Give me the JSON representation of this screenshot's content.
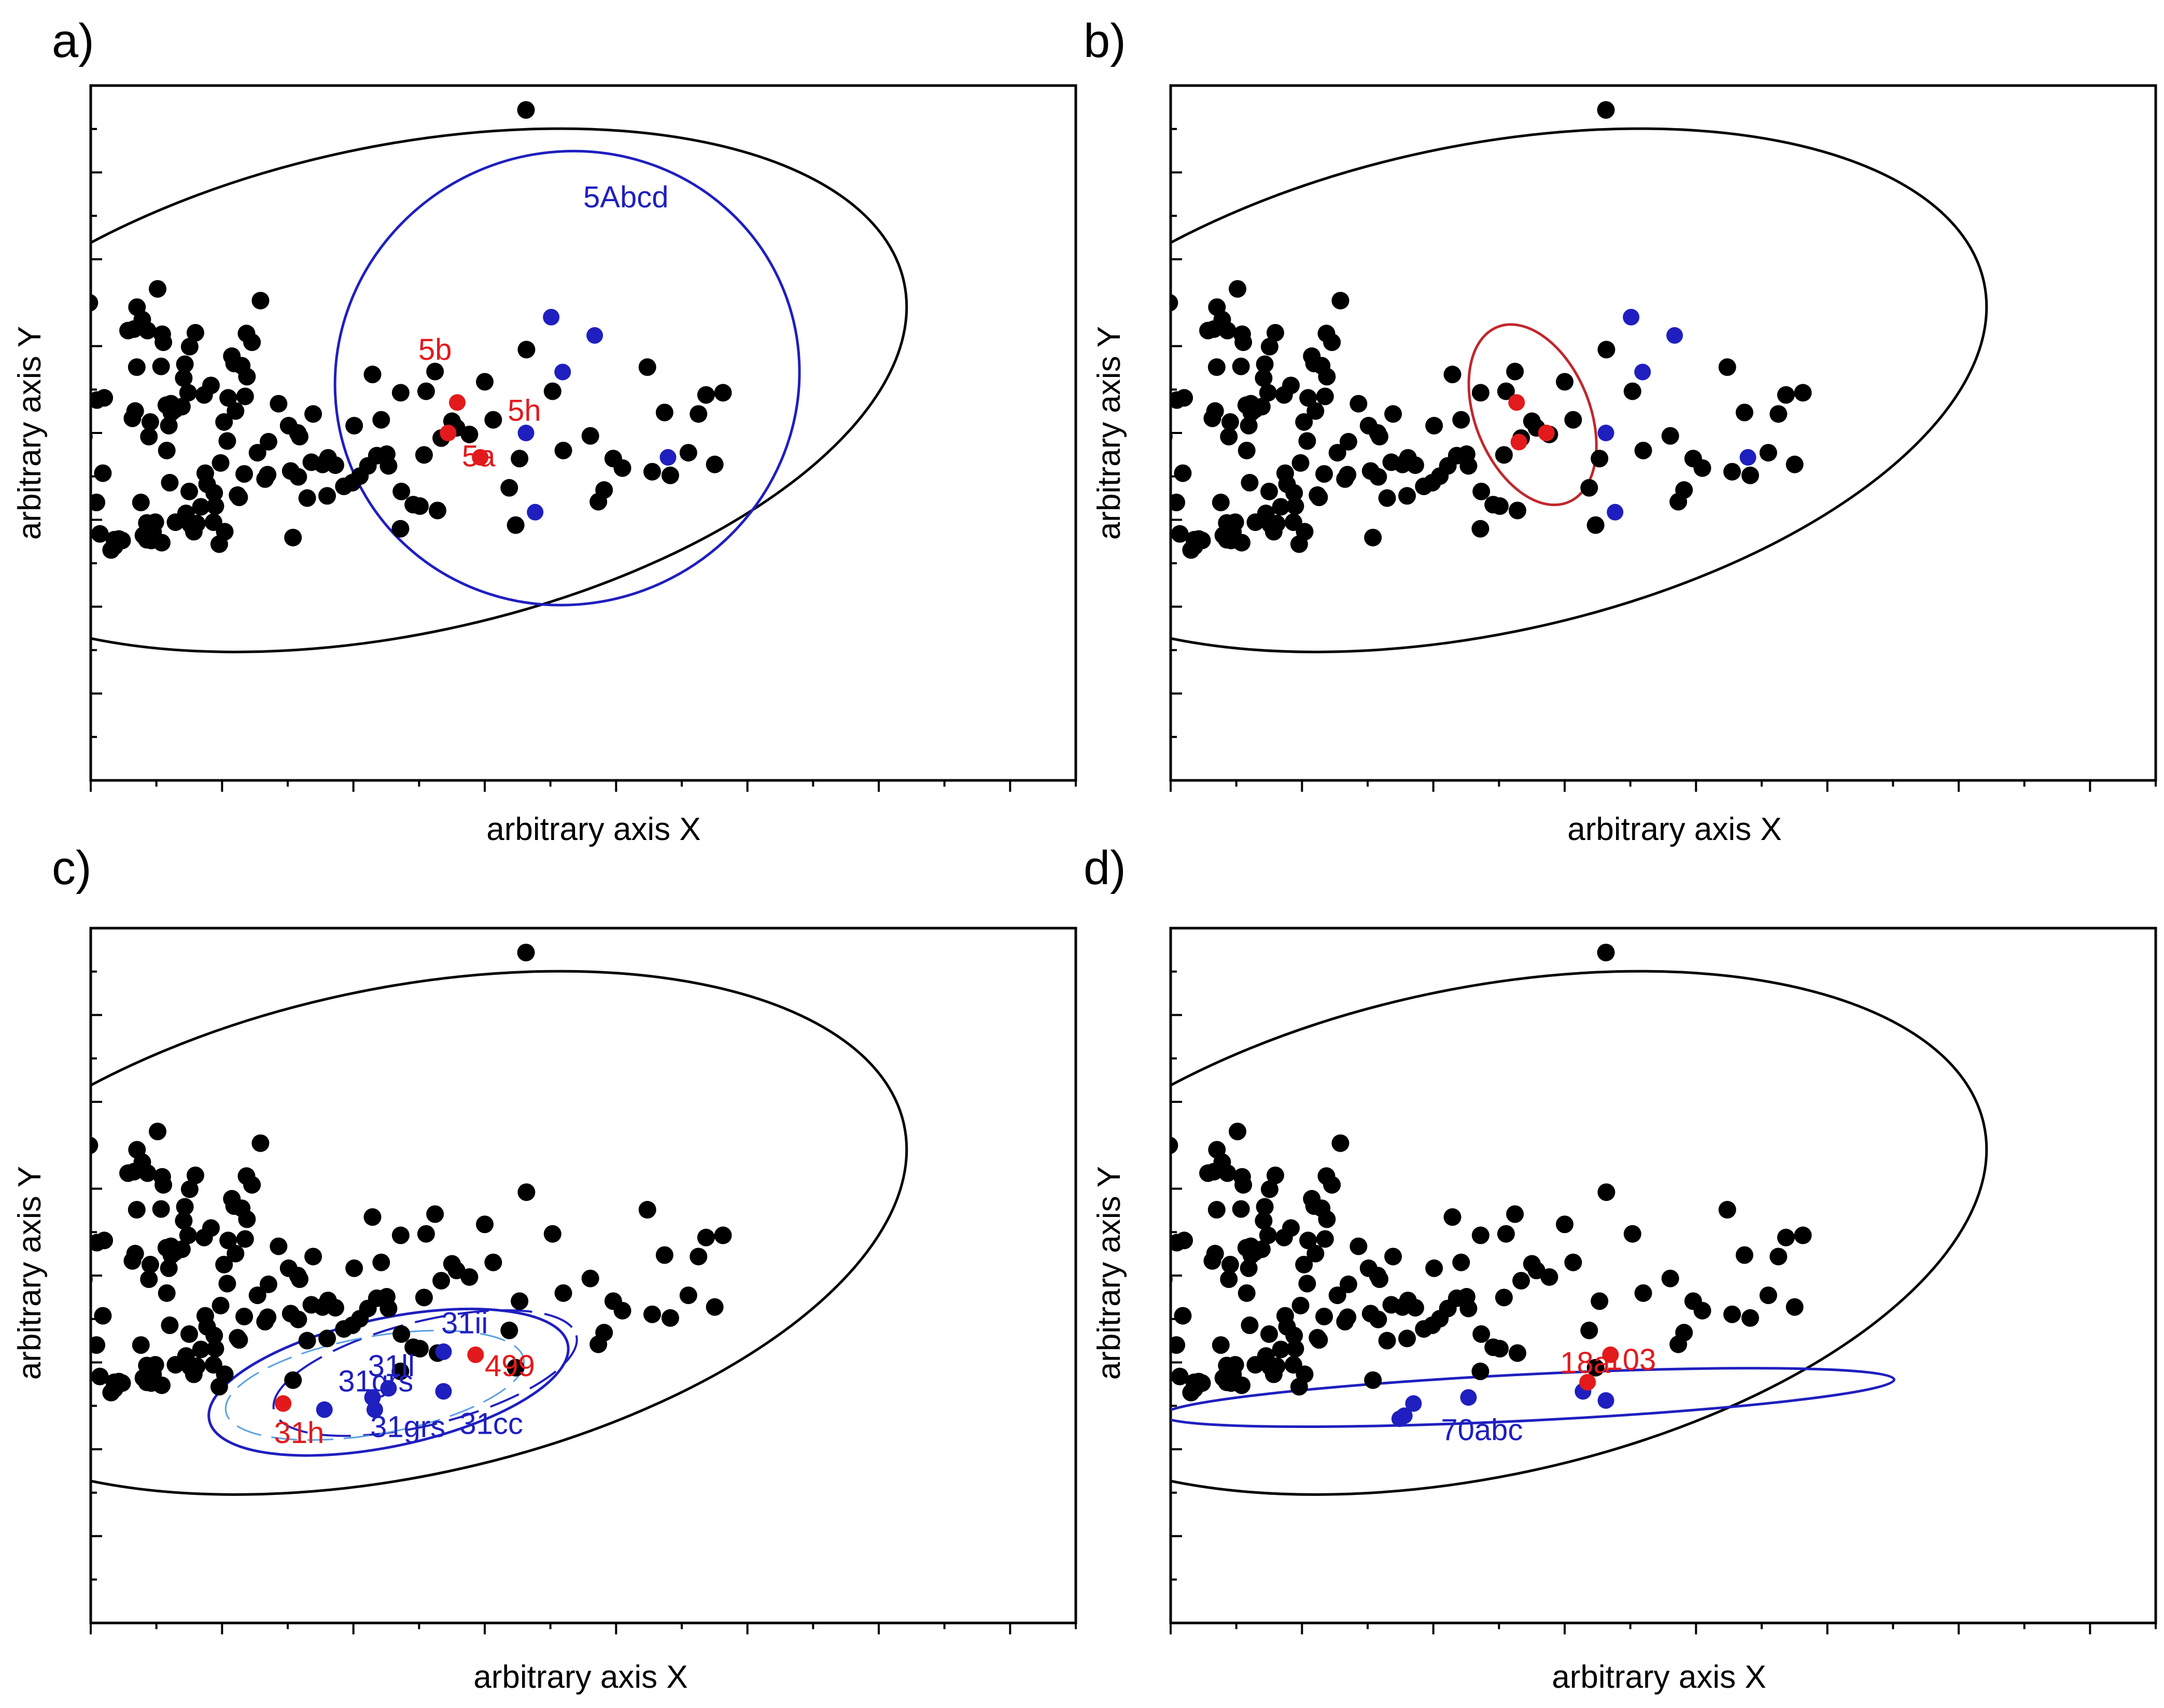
{
  "colors": {
    "black": "#000000",
    "red": "#e31a1c",
    "blue": "#1f1fbf",
    "envelope_black": "#000000",
    "red_ellipse": "#c0282d",
    "blue_ellipse": "#1f1fbf"
  },
  "base_points": [
    [
      -4.32,
      0.55
    ],
    [
      -3.87,
      -1.18
    ],
    [
      -3.97,
      -1.4
    ],
    [
      -3.06,
      1.78
    ],
    [
      -3.3,
      -0.05
    ],
    [
      -2.73,
      0.45
    ],
    [
      -2.41,
      0.48
    ],
    [
      -2.75,
      -0.95
    ],
    [
      -2.6,
      -1.38
    ],
    [
      -2.47,
      -0.55
    ],
    [
      -2.11,
      -1.6
    ],
    [
      -1.96,
      -1.55
    ],
    [
      -1.77,
      -1.45
    ],
    [
      -1.63,
      -1.47
    ],
    [
      -1.97,
      -1.46
    ],
    [
      -1.37,
      1.4
    ],
    [
      -1.11,
      1.42
    ],
    [
      -0.98,
      1.72
    ],
    [
      -1.18,
      0.2
    ],
    [
      -1.06,
      0.3
    ],
    [
      -0.99,
      0.9
    ],
    [
      -0.52,
      1.4
    ],
    [
      -0.75,
      1.55
    ],
    [
      -0.81,
      -0.95
    ],
    [
      -0.7,
      -1.4
    ],
    [
      -0.55,
      -1.23
    ],
    [
      -0.55,
      -1.46
    ],
    [
      -0.28,
      -1.35
    ],
    [
      -0.18,
      -1.22
    ],
    [
      -0.36,
      -1.47
    ],
    [
      -0.46,
      -0.05
    ],
    [
      -0.4,
      0.15
    ],
    [
      0.1,
      -1.5
    ],
    [
      -0.08,
      1.97
    ],
    [
      0.07,
      0.91
    ],
    [
      0.17,
      1.24
    ],
    [
      0.32,
      -0.24
    ],
    [
      0.7,
      -1.22
    ],
    [
      0.41,
      0.1
    ],
    [
      0.45,
      -0.68
    ],
    [
      0.12,
      1.35
    ],
    [
      0.5,
      0.4
    ],
    [
      0.52,
      0.28
    ],
    [
      0.3,
      0.38
    ],
    [
      0.68,
      0.32
    ],
    [
      0.98,
      0.36
    ],
    [
      1.06,
      0.75
    ],
    [
      1.11,
      0.94
    ],
    [
      1.32,
      1.18
    ],
    [
      1.57,
      1.37
    ],
    [
      1.25,
      0.55
    ],
    [
      1.3,
      -0.8
    ],
    [
      1.35,
      -1.25
    ],
    [
      1.16,
      -1.1
    ],
    [
      1.5,
      -1.35
    ],
    [
      1.63,
      -1.24
    ],
    [
      1.81,
      -1.01
    ],
    [
      1.95,
      0.52
    ],
    [
      2.0,
      -0.55
    ],
    [
      2.08,
      -0.7
    ],
    [
      2.25,
      0.65
    ],
    [
      2.36,
      -1.22
    ],
    [
      2.39,
      -0.82
    ],
    [
      2.44,
      -1.0
    ],
    [
      2.61,
      -1.52
    ],
    [
      2.67,
      -0.41
    ],
    [
      2.85,
      -1.35
    ],
    [
      2.82,
      0.15
    ],
    [
      2.96,
      -0.11
    ],
    [
      3.0,
      0.48
    ],
    [
      3.16,
      1.05
    ],
    [
      3.32,
      0.3
    ],
    [
      3.59,
      0.92
    ],
    [
      3.41,
      -0.85
    ],
    [
      3.48,
      -0.88
    ],
    [
      3.26,
      0.95
    ],
    [
      3.7,
      -0.56
    ],
    [
      3.74,
      0.5
    ],
    [
      3.82,
      0.77
    ],
    [
      3.8,
      1.36
    ],
    [
      4.04,
      1.24
    ],
    [
      4.41,
      1.81
    ],
    [
      4.28,
      -0.27
    ],
    [
      4.61,
      -0.63
    ],
    [
      4.72,
      -0.57
    ],
    [
      4.76,
      -0.12
    ],
    [
      5.2,
      0.4
    ],
    [
      5.64,
      0.1
    ],
    [
      5.73,
      -0.52
    ],
    [
      5.83,
      -1.43
    ],
    [
      6.04,
      0.0
    ],
    [
      6.06,
      -0.6
    ],
    [
      6.12,
      -0.05
    ],
    [
      6.45,
      -0.89
    ],
    [
      6.63,
      -0.4
    ],
    [
      6.71,
      0.26
    ],
    [
      7.12,
      -0.43
    ],
    [
      7.32,
      -0.86
    ],
    [
      7.36,
      -0.34
    ],
    [
      7.68,
      -0.44
    ],
    [
      8.05,
      -0.73
    ],
    [
      8.42,
      -0.68
    ],
    [
      8.5,
      0.1
    ],
    [
      8.75,
      -0.59
    ],
    [
      9.1,
      -0.45
    ],
    [
      9.3,
      0.8
    ],
    [
      9.49,
      -0.31
    ],
    [
      9.68,
      0.18
    ],
    [
      9.92,
      -0.29
    ],
    [
      10.0,
      -0.45
    ],
    [
      10.52,
      -1.31
    ],
    [
      10.53,
      0.55
    ],
    [
      10.56,
      -0.8
    ],
    [
      11.08,
      -0.98
    ],
    [
      11.37,
      -1.0
    ],
    [
      11.55,
      -0.3
    ],
    [
      11.64,
      0.57
    ],
    [
      12.03,
      0.84
    ],
    [
      12.14,
      -1.06
    ],
    [
      12.3,
      -0.07
    ],
    [
      12.77,
      0.16
    ],
    [
      12.97,
      0.07
    ],
    [
      13.53,
      -0.02
    ],
    [
      14.2,
      0.7
    ],
    [
      14.57,
      0.18
    ],
    [
      15.27,
      -0.75
    ],
    [
      15.55,
      -1.26
    ],
    [
      15.72,
      -0.35
    ],
    [
      16.02,
      1.14
    ],
    [
      17.16,
      0.57
    ],
    [
      17.63,
      -0.24
    ],
    [
      18.81,
      -0.04
    ],
    [
      19.16,
      -0.94
    ],
    [
      19.41,
      -0.78
    ],
    [
      19.81,
      -0.35
    ],
    [
      20.21,
      -0.48
    ],
    [
      21.51,
      -0.53
    ],
    [
      21.3,
      0.9
    ],
    [
      22.05,
      0.28
    ],
    [
      22.3,
      -0.58
    ],
    [
      23.09,
      -0.27
    ],
    [
      23.53,
      0.26
    ],
    [
      23.86,
      0.52
    ],
    [
      24.24,
      -0.43
    ],
    [
      24.6,
      0.55
    ]
  ],
  "panels": [
    {
      "id": "a",
      "letter": "a)",
      "x_title": "arbitrary axis X",
      "y_title": "arbitrary axis Y",
      "outlier": [
        0.0,
        5.3
      ],
      "red_points": [
        [
          -1.7,
          0.0
        ],
        [
          -1.0,
          -0.4
        ],
        [
          -1.5,
          0.5
        ]
      ],
      "blue_points": [
        [
          0.55,
          1.9
        ],
        [
          0.0,
          0.0
        ],
        [
          1.5,
          1.6
        ],
        [
          3.1,
          -0.4
        ],
        [
          0.2,
          -1.3
        ],
        [
          0.8,
          1.0
        ]
      ],
      "labels": [
        {
          "text": "5b",
          "x": -2.35,
          "y": 1.2,
          "color": "red"
        },
        {
          "text": "5h",
          "x": -0.4,
          "y": 0.2,
          "color": "red"
        },
        {
          "text": "5a",
          "x": -1.4,
          "y": -0.55,
          "color": "red"
        },
        {
          "text": "5Abcd",
          "x": 1.25,
          "y": 3.7,
          "color": "blue"
        }
      ]
    },
    {
      "id": "b",
      "letter": "b)",
      "x_title": "arbitrary axis X",
      "y_title": "arbitrary axis Y",
      "outlier": [
        0.0,
        5.3
      ],
      "red_points": [
        [
          -1.95,
          0.5
        ],
        [
          -1.3,
          0.0
        ],
        [
          -1.9,
          -0.15
        ]
      ],
      "blue_points": [
        [
          0.55,
          1.9
        ],
        [
          0.0,
          0.0
        ],
        [
          1.5,
          1.6
        ],
        [
          3.1,
          -0.4
        ],
        [
          0.2,
          -1.3
        ],
        [
          0.8,
          1.0
        ]
      ],
      "labels": []
    },
    {
      "id": "c",
      "letter": "c)",
      "x_title": "arbitrary axis X",
      "y_title": "arbitrary axis Y",
      "outlier": [
        0.0,
        5.3
      ],
      "red_points": [
        [
          -5.3,
          -2.1
        ],
        [
          -1.1,
          -1.3
        ]
      ],
      "blue_points": [
        [
          -4.4,
          -2.2
        ],
        [
          -3.35,
          -2.0
        ],
        [
          -3.3,
          -2.2
        ],
        [
          -1.8,
          -1.25
        ],
        [
          -1.8,
          -1.9
        ],
        [
          -3.0,
          -1.85
        ]
      ],
      "labels": [
        {
          "text": "31h",
          "x": -5.5,
          "y": -2.75,
          "color": "red"
        },
        {
          "text": "499",
          "x": -0.9,
          "y": -1.65,
          "color": "red"
        },
        {
          "text": "31grs",
          "x": -4.1,
          "y": -1.9,
          "color": "blue"
        },
        {
          "text": "31ll",
          "x": -3.45,
          "y": -1.65,
          "color": "blue"
        },
        {
          "text": "31ii",
          "x": -1.85,
          "y": -0.95,
          "color": "blue"
        },
        {
          "text": "31grs",
          "x": -3.4,
          "y": -2.65,
          "color": "blue"
        },
        {
          "text": "31cc",
          "x": -1.45,
          "y": -2.6,
          "color": "blue"
        }
      ]
    },
    {
      "id": "d",
      "letter": "d)",
      "x_title": "arbitrary axis X",
      "y_title": "arbitrary axis Y",
      "outlier": [
        0.0,
        5.3
      ],
      "red_points": [
        [
          0.1,
          -1.3
        ],
        [
          -0.4,
          -1.75
        ]
      ],
      "blue_points": [
        [
          -4.4,
          -2.3
        ],
        [
          -4.2,
          -2.1
        ],
        [
          -3.0,
          -2.0
        ],
        [
          0.0,
          -2.05
        ],
        [
          -4.5,
          -2.35
        ],
        [
          -0.5,
          -1.9
        ]
      ],
      "labels": [
        {
          "text": "18a",
          "x": -1.0,
          "y": -1.6,
          "color": "red"
        },
        {
          "text": "103",
          "x": 0.0,
          "y": -1.55,
          "color": "red"
        },
        {
          "text": "70abc",
          "x": -3.6,
          "y": -2.7,
          "color": "blue"
        }
      ]
    }
  ]
}
